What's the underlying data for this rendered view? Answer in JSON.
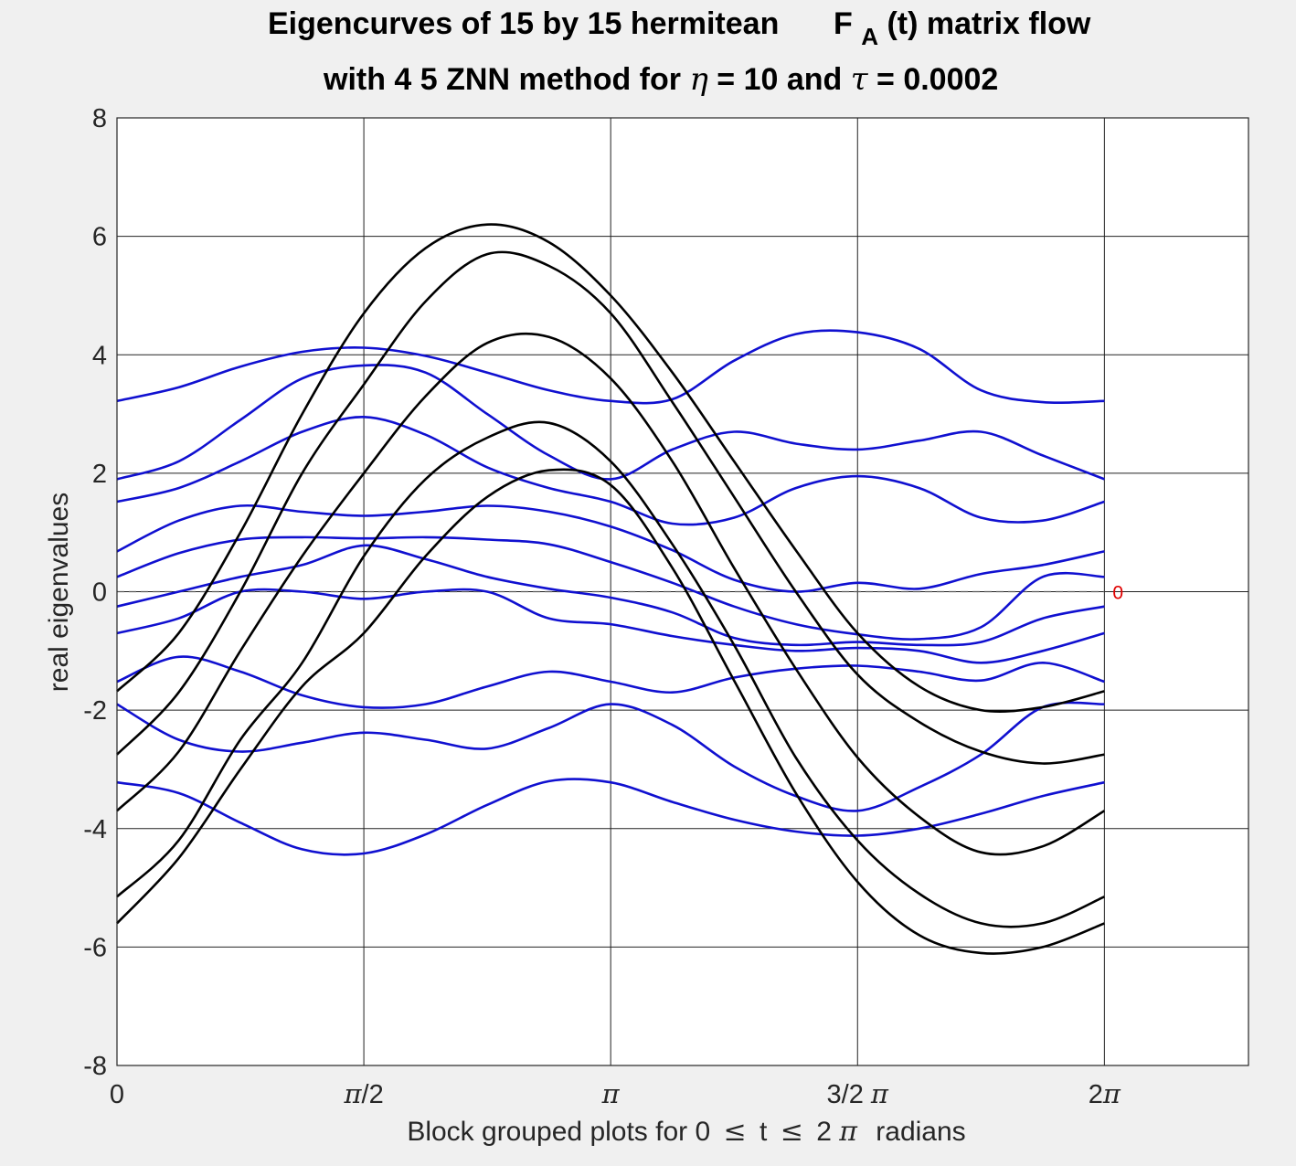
{
  "chart_data": {
    "type": "line",
    "title_line1_part1": "Eigencurves of 15 by 15 hermitean",
    "title_F": "F",
    "title_F_sub": "A",
    "title_line1_part2": "(t)  matrix flow",
    "title_line2_part1": "with 4 5 ZNN method for",
    "title_eta": "η",
    "title_line2_part2": "= 10 and",
    "title_tau": "τ",
    "title_line2_part3": "= 0.0002",
    "ylabel": "real eigenvalues",
    "xlabel_part1": "Block grouped plots for  0",
    "xlabel_le1": "≤",
    "xlabel_t": "t",
    "xlabel_le2": "≤",
    "xlabel_2": "2",
    "xlabel_pi": "π",
    "xlabel_part2": "radians",
    "xlim": [
      0,
      7.2
    ],
    "ylim": [
      -8,
      8
    ],
    "grid": true,
    "ytick_values": [
      8,
      6,
      4,
      2,
      0,
      -2,
      -4,
      -6,
      -8
    ],
    "ytick_labels": [
      "8",
      "6",
      "4",
      "2",
      "0",
      "-2",
      "-4",
      "-6",
      "-8"
    ],
    "xtick_values": [
      0,
      1.5708,
      3.1416,
      4.7124,
      6.2832
    ],
    "xtick_labels": [
      {
        "pre": "0",
        "pi": "",
        "post": ""
      },
      {
        "pre": "",
        "pi": "π",
        "post": "/2"
      },
      {
        "pre": "",
        "pi": "π",
        "post": ""
      },
      {
        "pre": "3/2 ",
        "pi": "π",
        "post": ""
      },
      {
        "pre": "2",
        "pi": "π",
        "post": ""
      }
    ],
    "zero_marker_label": "0",
    "colors": {
      "blue_series": "#1010d0",
      "black_series": "#000000",
      "zero_line": "#555555",
      "annotation": "#e00000"
    },
    "x": [
      0,
      0.3927,
      0.7854,
      1.1781,
      1.5708,
      1.9635,
      2.3562,
      2.7489,
      3.1416,
      3.5343,
      3.927,
      4.3197,
      4.7124,
      5.1051,
      5.4978,
      5.8905,
      6.2832
    ],
    "series": [
      {
        "group": "blue",
        "values": [
          3.22,
          3.45,
          3.8,
          4.05,
          4.12,
          3.98,
          3.7,
          3.4,
          3.22,
          3.25,
          3.9,
          4.35,
          4.38,
          4.1,
          3.4,
          3.2,
          3.22
        ]
      },
      {
        "group": "blue",
        "values": [
          1.9,
          2.2,
          2.9,
          3.6,
          3.82,
          3.7,
          3.0,
          2.3,
          1.9,
          2.4,
          2.7,
          2.5,
          2.4,
          2.55,
          2.7,
          2.3,
          1.9
        ]
      },
      {
        "group": "blue",
        "values": [
          1.52,
          1.75,
          2.2,
          2.7,
          2.95,
          2.65,
          2.1,
          1.75,
          1.52,
          1.15,
          1.25,
          1.75,
          1.95,
          1.75,
          1.25,
          1.2,
          1.52
        ]
      },
      {
        "group": "blue",
        "values": [
          0.68,
          1.2,
          1.45,
          1.35,
          1.28,
          1.35,
          1.45,
          1.35,
          1.1,
          0.7,
          0.2,
          0.0,
          0.15,
          0.05,
          0.3,
          0.45,
          0.68
        ]
      },
      {
        "group": "blue",
        "values": [
          0.25,
          0.65,
          0.88,
          0.92,
          0.9,
          0.92,
          0.88,
          0.8,
          0.5,
          0.15,
          -0.25,
          -0.55,
          -0.72,
          -0.8,
          -0.6,
          0.25,
          0.25
        ]
      },
      {
        "group": "blue",
        "values": [
          -0.25,
          0.0,
          0.25,
          0.45,
          0.78,
          0.55,
          0.25,
          0.05,
          -0.1,
          -0.35,
          -0.78,
          -0.9,
          -0.85,
          -0.9,
          -0.85,
          -0.45,
          -0.25
        ]
      },
      {
        "group": "blue",
        "values": [
          -0.7,
          -0.45,
          0.0,
          0.0,
          -0.12,
          0.0,
          0.0,
          -0.45,
          -0.55,
          -0.75,
          -0.9,
          -1.0,
          -0.95,
          -1.0,
          -1.2,
          -1.0,
          -0.7
        ]
      },
      {
        "group": "blue",
        "values": [
          -1.52,
          -1.1,
          -1.35,
          -1.75,
          -1.95,
          -1.9,
          -1.6,
          -1.35,
          -1.52,
          -1.7,
          -1.45,
          -1.3,
          -1.25,
          -1.35,
          -1.5,
          -1.2,
          -1.52
        ]
      },
      {
        "group": "blue",
        "values": [
          -1.9,
          -2.5,
          -2.7,
          -2.55,
          -2.38,
          -2.5,
          -2.65,
          -2.3,
          -1.9,
          -2.25,
          -2.95,
          -3.45,
          -3.7,
          -3.3,
          -2.75,
          -1.95,
          -1.9
        ]
      },
      {
        "group": "blue",
        "values": [
          -3.22,
          -3.4,
          -3.9,
          -4.35,
          -4.42,
          -4.1,
          -3.6,
          -3.2,
          -3.22,
          -3.55,
          -3.85,
          -4.05,
          -4.12,
          -4.0,
          -3.75,
          -3.45,
          -3.22
        ]
      },
      {
        "group": "black",
        "values": [
          -1.68,
          -0.7,
          1.0,
          3.0,
          4.7,
          5.8,
          6.2,
          5.9,
          5.0,
          3.7,
          2.2,
          0.7,
          -0.7,
          -1.6,
          -2.0,
          -1.95,
          -1.68
        ]
      },
      {
        "group": "black",
        "values": [
          -2.75,
          -1.7,
          0.0,
          2.0,
          3.5,
          4.9,
          5.7,
          5.5,
          4.7,
          3.2,
          1.6,
          0.0,
          -1.4,
          -2.2,
          -2.7,
          -2.9,
          -2.75
        ]
      },
      {
        "group": "black",
        "values": [
          -3.7,
          -2.7,
          -1.0,
          0.6,
          2.0,
          3.3,
          4.2,
          4.3,
          3.6,
          2.2,
          0.4,
          -1.3,
          -2.8,
          -3.8,
          -4.4,
          -4.3,
          -3.7
        ]
      },
      {
        "group": "black",
        "values": [
          -5.15,
          -4.2,
          -2.5,
          -1.2,
          0.6,
          1.9,
          2.6,
          2.85,
          2.2,
          0.8,
          -0.9,
          -2.8,
          -4.2,
          -5.1,
          -5.6,
          -5.6,
          -5.15
        ]
      },
      {
        "group": "black",
        "values": [
          -5.6,
          -4.5,
          -3.0,
          -1.6,
          -0.7,
          0.6,
          1.6,
          2.05,
          1.8,
          0.4,
          -1.5,
          -3.4,
          -4.9,
          -5.8,
          -6.1,
          -6.0,
          -5.6
        ]
      }
    ]
  }
}
